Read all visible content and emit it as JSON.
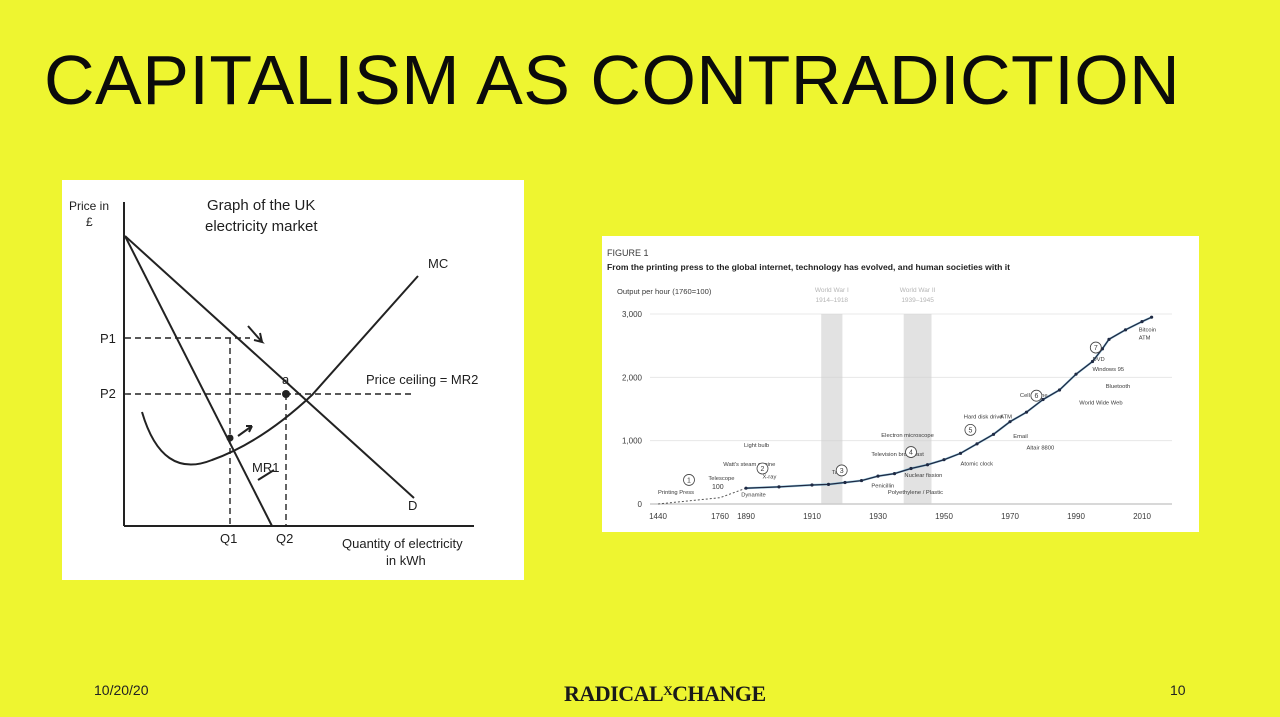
{
  "slide": {
    "title": "CAPITALISM AS CONTRADICTION",
    "footer_date": "10/20/20",
    "footer_logo_left": "RADICAL",
    "footer_logo_x": "X",
    "footer_logo_right": "CHANGE",
    "page_number": "10",
    "background_color": "#eef530"
  },
  "left_graph": {
    "title_line1": "Graph of the UK",
    "title_line2": "electricity market",
    "y_label_line1": "Price in",
    "y_label_line2": "£",
    "x_label_line1": "Quantity of electricity",
    "x_label_line2": "in kWh",
    "labels": {
      "mc": "MC",
      "price_ceiling": "Price ceiling = MR2",
      "p1": "P1",
      "p2": "P2",
      "a": "a",
      "mr1": "MR1",
      "d": "D",
      "q1": "Q1",
      "q2": "Q2"
    }
  },
  "chart_data": {
    "type": "line",
    "figure_label": "FIGURE 1",
    "title": "From the printing press to the global internet, technology has evolved, and human societies with it",
    "ylabel": "Output per hour (1760=100)",
    "xlabel": "",
    "x_ticks": [
      "1440",
      "1760",
      "1890",
      "1910",
      "1930",
      "1950",
      "1970",
      "1990",
      "2010"
    ],
    "y_ticks": [
      0,
      1000,
      2000,
      3000
    ],
    "y_tick_labels": [
      "0",
      "1,000",
      "2,000",
      "3,000"
    ],
    "ylim": [
      0,
      3000
    ],
    "value_label": "100",
    "shaded_periods": [
      {
        "label_line1": "World War I",
        "label_line2": "1914–1918",
        "start": 1914,
        "end": 1918
      },
      {
        "label_line1": "World War II",
        "label_line2": "1939–1945",
        "start": 1939,
        "end": 1945
      }
    ],
    "series": [
      {
        "x": [
          1440,
          1760,
          1890,
          1900,
          1910,
          1915,
          1920,
          1925,
          1930,
          1935,
          1940,
          1945,
          1950,
          1955,
          1960,
          1965,
          1970,
          1975,
          1980,
          1985,
          1990,
          1995,
          1998,
          2000,
          2005,
          2010,
          2013
        ],
        "values": [
          0,
          100,
          250,
          270,
          300,
          310,
          340,
          370,
          440,
          480,
          560,
          620,
          700,
          800,
          950,
          1100,
          1300,
          1450,
          1650,
          1800,
          2050,
          2250,
          2450,
          2600,
          2750,
          2880,
          2950
        ]
      }
    ],
    "annotations": [
      {
        "text": "Printing Press",
        "x": 1440,
        "y": 160
      },
      {
        "text": "Telescope",
        "x": 1700,
        "y": 380
      },
      {
        "text": "Watt's steam engine",
        "x": 1776,
        "y": 600
      },
      {
        "text": "Light bulb",
        "x": 1880,
        "y": 900
      },
      {
        "text": "X-ray",
        "x": 1895,
        "y": 400
      },
      {
        "text": "Dynamite",
        "x": 1866,
        "y": 120
      },
      {
        "text": "Television broadcast",
        "x": 1928,
        "y": 760
      },
      {
        "text": "Tank",
        "x": 1916,
        "y": 470
      },
      {
        "text": "Polyethylene / Plastic",
        "x": 1933,
        "y": 160
      },
      {
        "text": "Penicillin",
        "x": 1928,
        "y": 260
      },
      {
        "text": "Electron microscope",
        "x": 1931,
        "y": 1060
      },
      {
        "text": "Nuclear fission",
        "x": 1938,
        "y": 430
      },
      {
        "text": "Atomic clock",
        "x": 1955,
        "y": 610
      },
      {
        "text": "Hard disk drive",
        "x": 1956,
        "y": 1350
      },
      {
        "text": "ATM",
        "x": 1967,
        "y": 1350
      },
      {
        "text": "Email",
        "x": 1971,
        "y": 1040
      },
      {
        "text": "Altair 8800",
        "x": 1975,
        "y": 860
      },
      {
        "text": "Cell phone",
        "x": 1973,
        "y": 1690
      },
      {
        "text": "DVD",
        "x": 1995,
        "y": 2260
      },
      {
        "text": "Windows 95",
        "x": 1995,
        "y": 2100
      },
      {
        "text": "Bluetooth",
        "x": 1999,
        "y": 1830
      },
      {
        "text": "World Wide Web",
        "x": 1991,
        "y": 1570
      },
      {
        "text": "Bitcoin",
        "x": 2009,
        "y": 2720
      },
      {
        "text": "ATM",
        "x": 2009,
        "y": 2600
      }
    ],
    "circled_numbers": [
      "1",
      "2",
      "3",
      "4",
      "5",
      "6",
      "7"
    ],
    "colors": {
      "line": "#1f2a44",
      "accent": "#4aa3c8",
      "shade": "#cfcfcf"
    }
  }
}
